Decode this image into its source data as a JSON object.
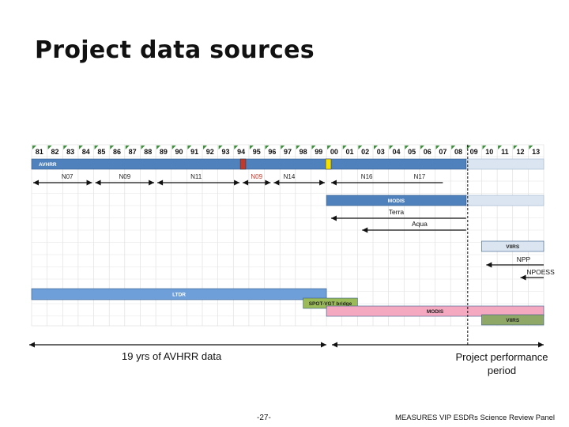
{
  "title": "Project data sources",
  "years": [
    "81",
    "82",
    "83",
    "84",
    "85",
    "86",
    "87",
    "88",
    "89",
    "90",
    "91",
    "92",
    "93",
    "94",
    "95",
    "96",
    "97",
    "98",
    "99",
    "00",
    "01",
    "02",
    "03",
    "04",
    "05",
    "06",
    "07",
    "08",
    "09",
    "10",
    "11",
    "12",
    "13"
  ],
  "bars": [
    {
      "label": "AVHRR",
      "start": 0,
      "end": 28,
      "color": "#4f81bd",
      "tail_end": 33,
      "tail_color": "#dbe5f1",
      "row": "top"
    },
    {
      "label": "MODIS",
      "start": 19,
      "end": 28,
      "color": "#4f81bd",
      "tail_end": 33,
      "tail_color": "#dbe5f1",
      "row": "modis"
    },
    {
      "label": "VIIRS",
      "start": 29,
      "end": 33,
      "color": "#dbe5f1",
      "row": "viirs"
    },
    {
      "label": "LTDR",
      "start": 0,
      "end": 19,
      "color": "#6f9fd8",
      "row": "ltdr"
    },
    {
      "label": "SPOT-VGT bridge",
      "start": 17.5,
      "end": 21,
      "color": "#9bbb59",
      "row": "spot"
    },
    {
      "label": "MODIS",
      "start": 19,
      "end": 33,
      "color": "#f4a9c0",
      "row": "modis2"
    },
    {
      "label": "VIIRS",
      "start": 29,
      "end": 33,
      "color": "#8fa867",
      "row": "viirs2"
    }
  ],
  "markers": [
    {
      "label": "",
      "position": 13.5,
      "color": "#c0392b"
    },
    {
      "label": "",
      "position": 19,
      "color": "#f5e100"
    }
  ],
  "satellites": [
    {
      "label": "N07",
      "color": "#222"
    },
    {
      "label": "N09",
      "color": "#222"
    },
    {
      "label": "N11",
      "color": "#222"
    },
    {
      "label": "N09",
      "color": "#c0392b"
    },
    {
      "label": "N14",
      "color": "#222"
    },
    {
      "label": "N16",
      "color": "#222"
    },
    {
      "label": "N17",
      "color": "#222"
    }
  ],
  "platforms": {
    "terra": "Terra",
    "aqua": "Aqua",
    "npp": "NPP",
    "npoess": "NPOESS"
  },
  "captions": {
    "avhrr_span": "19 yrs of AVHRR data",
    "performance": "Project performance period",
    "page_number": "-27-",
    "footer": "MEASURES VIP ESDRs Science Review Panel"
  }
}
